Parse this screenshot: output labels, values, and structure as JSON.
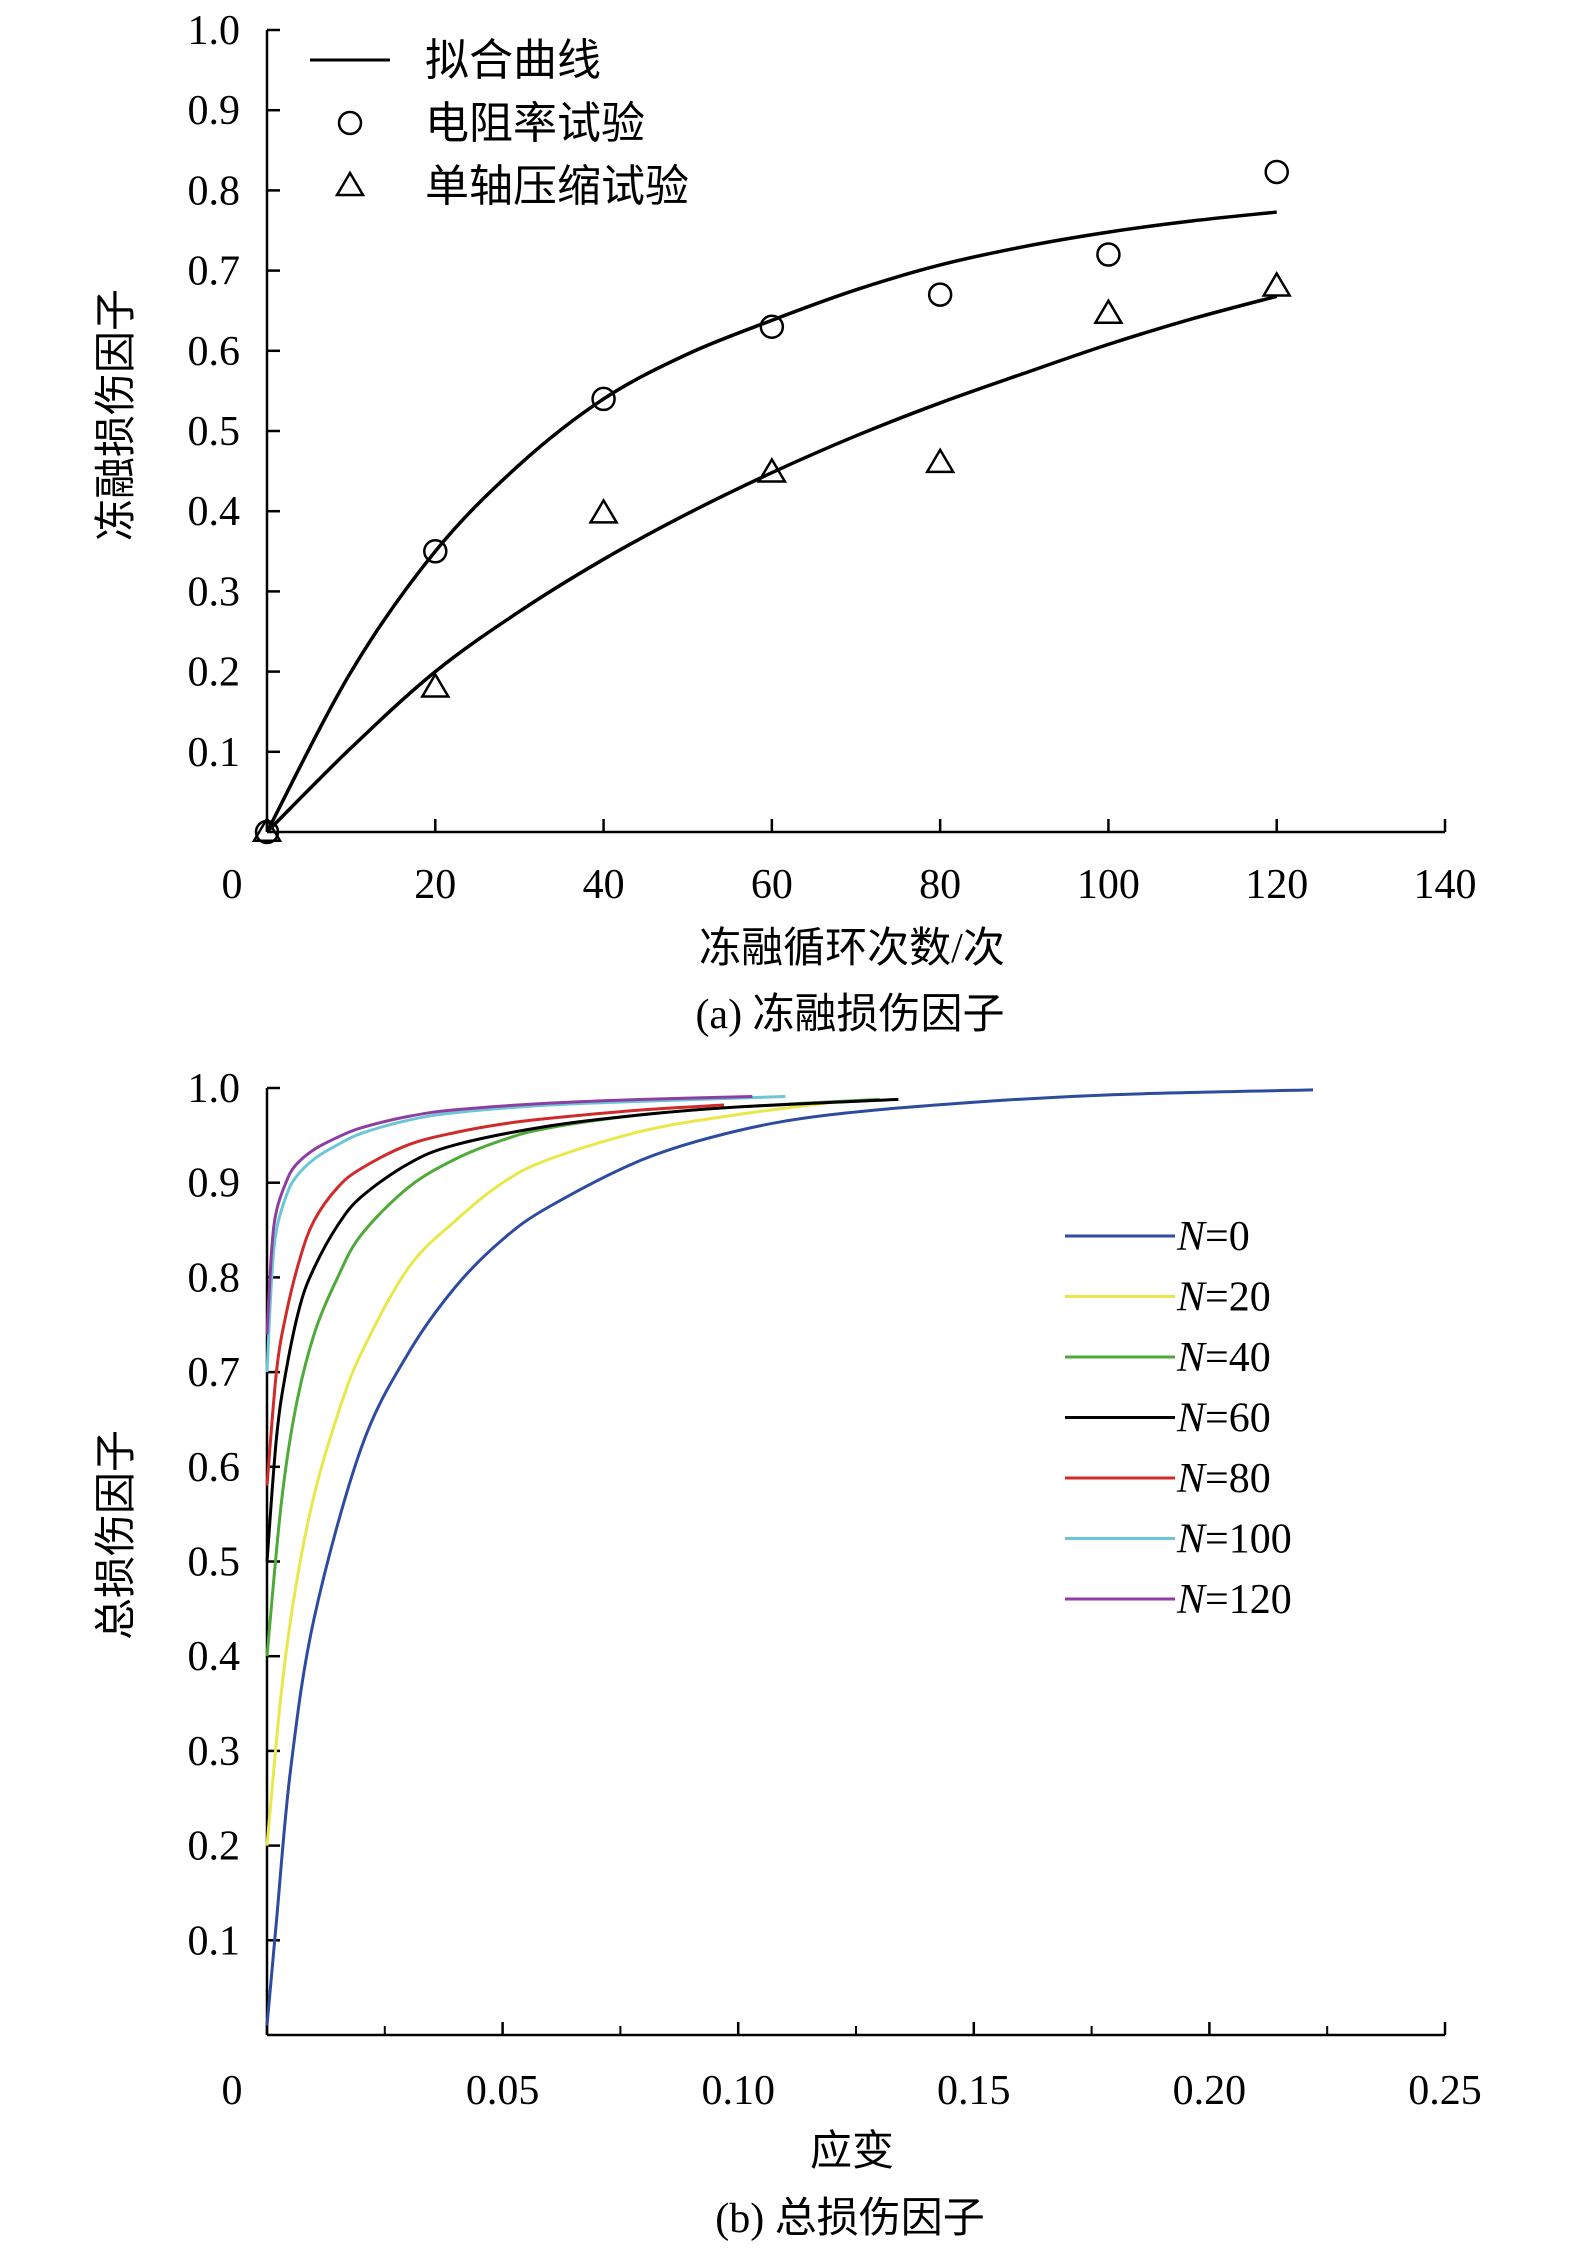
{
  "chart_data": [
    {
      "type": "line",
      "panel_label": "(a) 冻融损伤因子",
      "xlabel": "冻融循环次数/次",
      "ylabel": "冻融损伤因子",
      "xlim": [
        0,
        140
      ],
      "ylim": [
        0,
        1.0
      ],
      "x_ticks": [
        0,
        20,
        40,
        60,
        80,
        100,
        120,
        140
      ],
      "x_tick_labels": [
        "0",
        "20",
        "40",
        "60",
        "80",
        "100",
        "120",
        "140"
      ],
      "y_ticks": [
        0.1,
        0.2,
        0.3,
        0.4,
        0.5,
        0.6,
        0.7,
        0.8,
        0.9,
        1.0
      ],
      "y_tick_labels": [
        "0.1",
        "0.2",
        "0.3",
        "0.4",
        "0.5",
        "0.6",
        "0.7",
        "0.8",
        "0.9",
        "1.0"
      ],
      "legend": {
        "position": "top-left",
        "entries": [
          {
            "label": "拟合曲线",
            "marker": "line"
          },
          {
            "label": "电阻率试验",
            "marker": "circle"
          },
          {
            "label": "单轴压缩试验",
            "marker": "triangle"
          }
        ]
      },
      "series": [
        {
          "name": "电阻率试验",
          "kind": "points",
          "marker": "circle",
          "x": [
            0,
            20,
            40,
            60,
            80,
            100,
            120
          ],
          "y": [
            0.0,
            0.35,
            0.54,
            0.63,
            0.67,
            0.72,
            0.823
          ]
        },
        {
          "name": "单轴压缩试验",
          "kind": "points",
          "marker": "triangle",
          "x": [
            0,
            20,
            40,
            60,
            80,
            100,
            120
          ],
          "y": [
            0.0,
            0.18,
            0.397,
            0.448,
            0.46,
            0.646,
            0.68
          ]
        },
        {
          "name": "拟合曲线",
          "kind": "line",
          "x": [
            0,
            10,
            20,
            30,
            40,
            50,
            60,
            70,
            80,
            90,
            100,
            110,
            120
          ],
          "y": [
            0.0,
            0.2,
            0.35,
            0.458,
            0.54,
            0.596,
            0.638,
            0.676,
            0.707,
            0.73,
            0.748,
            0.762,
            0.773
          ]
        },
        {
          "name": "拟合曲线",
          "kind": "line",
          "x": [
            0,
            10,
            20,
            30,
            40,
            50,
            60,
            70,
            80,
            90,
            100,
            110,
            120
          ],
          "y": [
            0.0,
            0.105,
            0.2,
            0.275,
            0.34,
            0.397,
            0.448,
            0.494,
            0.535,
            0.572,
            0.608,
            0.64,
            0.668
          ]
        }
      ]
    },
    {
      "type": "line",
      "panel_label": "(b) 总损伤因子",
      "xlabel": "应变",
      "ylabel": "总损伤因子",
      "xlim": [
        0,
        0.25
      ],
      "ylim": [
        0,
        1.0
      ],
      "x_ticks": [
        0,
        0.05,
        0.1,
        0.15,
        0.2,
        0.25
      ],
      "x_tick_labels": [
        "0",
        "0.05",
        "0.10",
        "0.15",
        "0.20",
        "0.25"
      ],
      "y_ticks": [
        0.1,
        0.2,
        0.3,
        0.4,
        0.5,
        0.6,
        0.7,
        0.8,
        0.9,
        1.0
      ],
      "y_tick_labels": [
        "0.1",
        "0.2",
        "0.3",
        "0.4",
        "0.5",
        "0.6",
        "0.7",
        "0.8",
        "0.9",
        "1.0"
      ],
      "legend": {
        "position": "right"
      },
      "series": [
        {
          "name": "N=0",
          "N": "0",
          "color": "#2e4ba0",
          "x": [
            0,
            0.002,
            0.005,
            0.01,
            0.02,
            0.03,
            0.04,
            0.05,
            0.06,
            0.08,
            0.1,
            0.12,
            0.15,
            0.18,
            0.222
          ],
          "y": [
            0.01,
            0.12,
            0.28,
            0.44,
            0.62,
            0.72,
            0.79,
            0.84,
            0.875,
            0.925,
            0.955,
            0.972,
            0.985,
            0.993,
            0.998
          ]
        },
        {
          "name": "N=20",
          "N": "20",
          "color": "#e8e84a",
          "x": [
            0,
            0.003,
            0.006,
            0.01,
            0.015,
            0.02,
            0.03,
            0.04,
            0.05,
            0.06,
            0.08,
            0.1,
            0.12
          ],
          "y": [
            0.2,
            0.36,
            0.47,
            0.57,
            0.655,
            0.72,
            0.81,
            0.86,
            0.9,
            0.925,
            0.955,
            0.972,
            0.985
          ]
        },
        {
          "name": "N=40",
          "N": "40",
          "color": "#4faa3a",
          "x": [
            0,
            0.003,
            0.006,
            0.01,
            0.015,
            0.02,
            0.03,
            0.04,
            0.05,
            0.06,
            0.08,
            0.1,
            0.13
          ],
          "y": [
            0.4,
            0.56,
            0.66,
            0.74,
            0.8,
            0.845,
            0.895,
            0.925,
            0.945,
            0.958,
            0.972,
            0.98,
            0.988
          ]
        },
        {
          "name": "N=60",
          "N": "60",
          "color": "#000000",
          "x": [
            0,
            0.002,
            0.004,
            0.007,
            0.01,
            0.015,
            0.02,
            0.03,
            0.04,
            0.06,
            0.08,
            0.1,
            0.134
          ],
          "y": [
            0.5,
            0.63,
            0.7,
            0.77,
            0.81,
            0.855,
            0.885,
            0.92,
            0.94,
            0.96,
            0.972,
            0.98,
            0.988
          ]
        },
        {
          "name": "N=80",
          "N": "80",
          "color": "#d02a2a",
          "x": [
            0,
            0.002,
            0.004,
            0.007,
            0.01,
            0.015,
            0.02,
            0.03,
            0.04,
            0.05,
            0.06,
            0.08,
            0.097
          ],
          "y": [
            0.58,
            0.7,
            0.76,
            0.82,
            0.86,
            0.895,
            0.915,
            0.94,
            0.953,
            0.962,
            0.968,
            0.977,
            0.982
          ]
        },
        {
          "name": "N=100",
          "N": "100",
          "color": "#6cc6d6",
          "x": [
            0,
            0.001,
            0.002,
            0.004,
            0.006,
            0.01,
            0.015,
            0.02,
            0.03,
            0.04,
            0.06,
            0.08,
            0.11
          ],
          "y": [
            0.7,
            0.8,
            0.85,
            0.885,
            0.905,
            0.925,
            0.94,
            0.952,
            0.966,
            0.974,
            0.982,
            0.986,
            0.991
          ]
        },
        {
          "name": "N=120",
          "N": "120",
          "color": "#8c3fa0",
          "x": [
            0,
            0.001,
            0.002,
            0.004,
            0.006,
            0.01,
            0.015,
            0.02,
            0.03,
            0.04,
            0.06,
            0.08,
            0.103
          ],
          "y": [
            0.74,
            0.83,
            0.87,
            0.9,
            0.918,
            0.935,
            0.948,
            0.958,
            0.97,
            0.977,
            0.984,
            0.988,
            0.991
          ]
        }
      ]
    }
  ]
}
